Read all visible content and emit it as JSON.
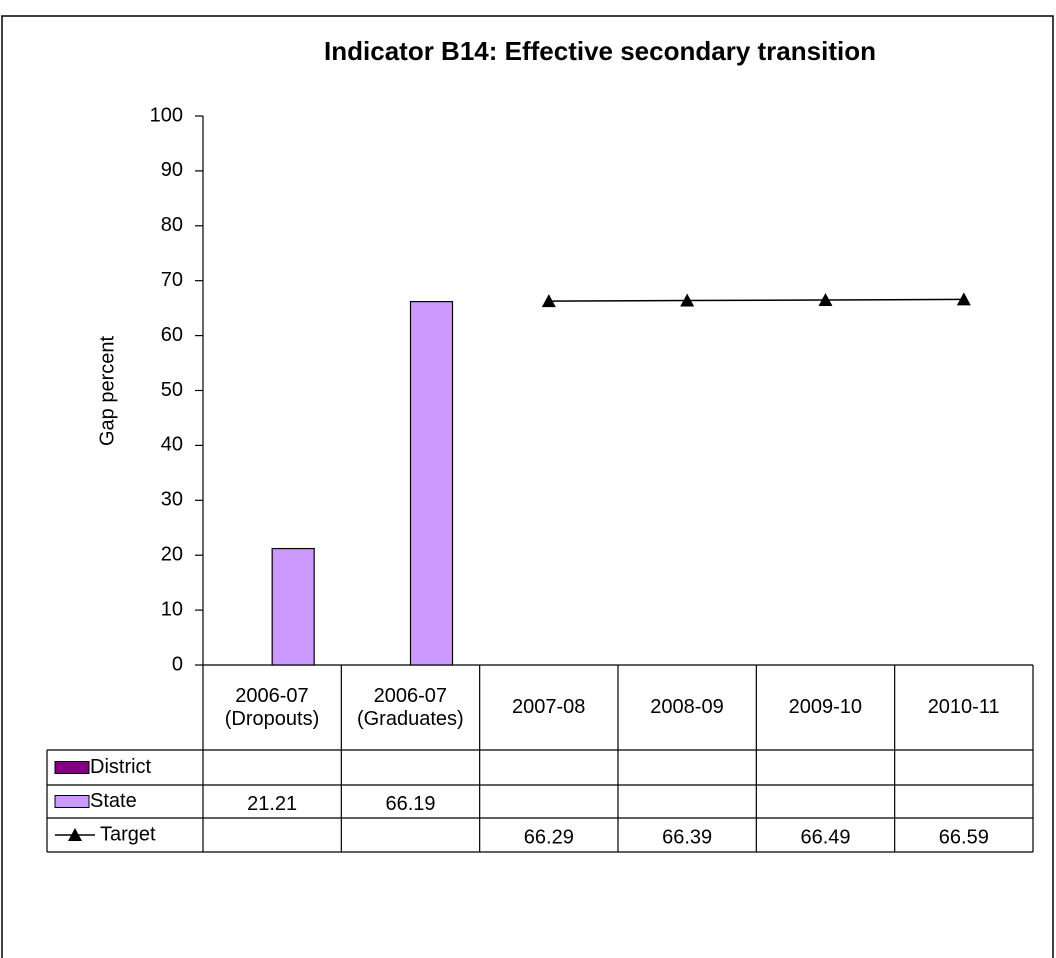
{
  "chart_data": {
    "type": "bar_line_table",
    "title": "Indicator B14: Effective secondary transition",
    "y_axis_label": "Gap percent",
    "categories": [
      "2006-07\n(Dropouts)",
      "2006-07\n(Graduates)",
      "2007-08",
      "2008-09",
      "2009-10",
      "2010-11"
    ],
    "series": [
      {
        "name": "District",
        "type": "bar",
        "color": "#800080",
        "values": [
          null,
          null,
          null,
          null,
          null,
          null
        ]
      },
      {
        "name": "State",
        "type": "bar",
        "color": "#cc99ff",
        "values": [
          21.21,
          66.19,
          null,
          null,
          null,
          null
        ]
      },
      {
        "name": "Target",
        "type": "line",
        "color": "#000000",
        "values": [
          null,
          null,
          66.29,
          66.39,
          66.49,
          66.59
        ]
      }
    ],
    "ylim": [
      0,
      100
    ],
    "yticks": [
      0,
      10,
      20,
      30,
      40,
      50,
      60,
      70,
      80,
      90,
      100
    ],
    "grid": false
  }
}
